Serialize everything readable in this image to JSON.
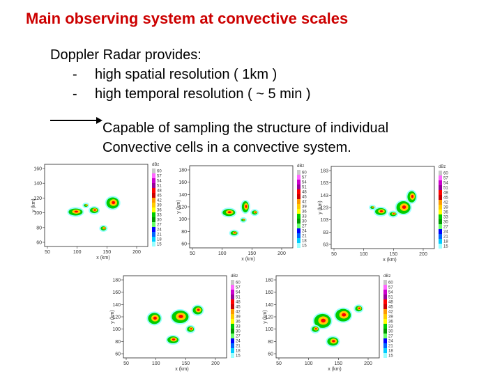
{
  "title": "Main observing system at convective scales",
  "intro": "Doppler Radar provides:",
  "bullets": [
    {
      "dash": "-",
      "text": "high spatial resolution ( 1km )"
    },
    {
      "dash": "-",
      "text": "high temporal resolution ( ~ 5 min )"
    }
  ],
  "conclusion": [
    "Capable of sampling the structure of individual",
    "Convective cells in a convective system."
  ],
  "colorbar": {
    "unit": "dBz",
    "levels": [
      "60",
      "57",
      "54",
      "51",
      "48",
      "45",
      "42",
      "39",
      "36",
      "33",
      "30",
      "27",
      "24",
      "21",
      "18",
      "15"
    ],
    "colors": [
      "#c8c8c8",
      "#ff66ff",
      "#cc00cc",
      "#990099",
      "#ff0000",
      "#cc0000",
      "#ff9900",
      "#ffcc00",
      "#ffff00",
      "#00cc00",
      "#009900",
      "#66ff66",
      "#0000ff",
      "#0066ff",
      "#00ccff",
      "#99ffff"
    ]
  },
  "panels": [
    {
      "id": "p1",
      "ylabel": "y (km)",
      "xlabel": "x (km)",
      "xticks": [
        "50",
        "100",
        "150",
        "200"
      ],
      "yticks": [
        "160",
        "140",
        "120",
        "100",
        "80",
        "60"
      ]
    },
    {
      "id": "p2",
      "ylabel": "y (km)",
      "xlabel": "x (km)",
      "xticks": [
        "50",
        "100",
        "150",
        "200"
      ],
      "yticks": [
        "180",
        "160",
        "140",
        "120",
        "100",
        "80",
        "60"
      ]
    },
    {
      "id": "p3",
      "ylabel": "y (km)",
      "xlabel": "x (km)",
      "xticks": [
        "50",
        "100",
        "150",
        "200"
      ],
      "yticks": [
        "183",
        "163",
        "143",
        "123",
        "103",
        "83",
        "63"
      ]
    },
    {
      "id": "p4",
      "ylabel": "y (km)",
      "xlabel": "x (km)",
      "xticks": [
        "50",
        "100",
        "150",
        "200"
      ],
      "yticks": [
        "180",
        "160",
        "140",
        "120",
        "100",
        "80",
        "60"
      ]
    },
    {
      "id": "p5",
      "ylabel": "y (km)",
      "xlabel": "x (km)",
      "xticks": [
        "50",
        "100",
        "150",
        "200"
      ],
      "yticks": [
        "180",
        "160",
        "140",
        "120",
        "100",
        "80",
        "60"
      ]
    }
  ]
}
